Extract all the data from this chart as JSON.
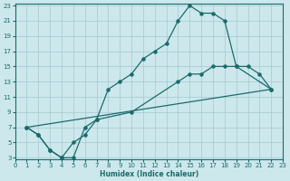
{
  "xlabel": "Humidex (Indice chaleur)",
  "bg_color": "#cce8ec",
  "grid_color": "#aacdd4",
  "line_color": "#1a6b6b",
  "xlim": [
    0,
    23
  ],
  "ylim": [
    3,
    23
  ],
  "xticks": [
    0,
    1,
    2,
    3,
    4,
    5,
    6,
    7,
    8,
    9,
    10,
    11,
    12,
    13,
    14,
    15,
    16,
    17,
    18,
    19,
    20,
    21,
    22,
    23
  ],
  "yticks": [
    3,
    5,
    7,
    9,
    11,
    13,
    15,
    17,
    19,
    21,
    23
  ],
  "line1_x": [
    1,
    2,
    3,
    4,
    5,
    6,
    7,
    8,
    9,
    10,
    11,
    12,
    13,
    14,
    15,
    16,
    17,
    18,
    19,
    22
  ],
  "line1_y": [
    7,
    6,
    4,
    3,
    3,
    7,
    8,
    12,
    13,
    14,
    16,
    17,
    18,
    21,
    23,
    22,
    22,
    21,
    15,
    12
  ],
  "line2_x": [
    1,
    2,
    3,
    4,
    5,
    6,
    7,
    10,
    14,
    15,
    16,
    17,
    18,
    19,
    20,
    21,
    22
  ],
  "line2_y": [
    7,
    6,
    4,
    3,
    5,
    6,
    8,
    9,
    13,
    14,
    14,
    15,
    15,
    15,
    15,
    14,
    12
  ],
  "line3_x": [
    1,
    22
  ],
  "line3_y": [
    7,
    12
  ]
}
